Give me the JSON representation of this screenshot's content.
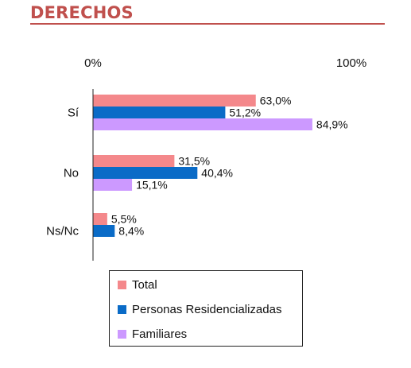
{
  "title": "DERECHOS",
  "chart_data": {
    "type": "bar",
    "orientation": "horizontal",
    "title": "DERECHOS",
    "categories": [
      "Sí",
      "No",
      "Ns/Nc"
    ],
    "series": [
      {
        "name": "Total",
        "color": "#f4888b",
        "values": [
          63.0,
          31.5,
          5.5
        ],
        "labels": [
          "63,0%",
          "31,5%",
          "5,5%"
        ]
      },
      {
        "name": "Personas Residencializadas",
        "color": "#0a6bc7",
        "values": [
          51.2,
          40.4,
          8.4
        ],
        "labels": [
          "51,2%",
          "40,4%",
          "8,4%"
        ]
      },
      {
        "name": "Familiares",
        "color": "#cc99ff",
        "values": [
          84.9,
          15.1,
          null
        ],
        "labels": [
          "84,9%",
          "15,1%",
          ""
        ]
      }
    ],
    "xlim": [
      0,
      100
    ],
    "axis_ticks": [
      "0%",
      "100%"
    ],
    "grid": false,
    "legend_position": "bottom"
  }
}
